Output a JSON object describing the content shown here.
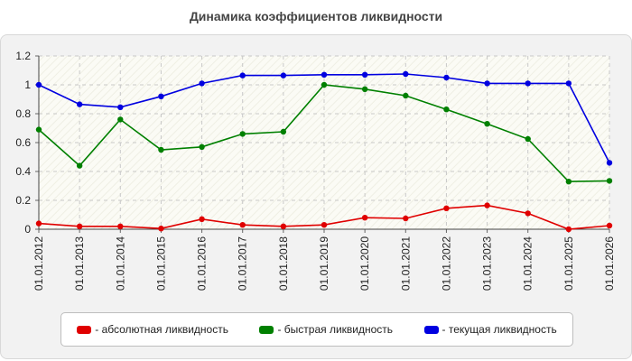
{
  "title": "Динамика коэффициентов ликвидности",
  "chart_data": {
    "type": "line",
    "title": "Динамика коэффициентов ликвидности",
    "xlabel": "",
    "ylabel": "",
    "x": [
      "01.01.2012",
      "01.01.2013",
      "01.01.2014",
      "01.01.2015",
      "01.01.2016",
      "01.01.2017",
      "01.01.2018",
      "01.01.2019",
      "01.01.2020",
      "01.01.2021",
      "01.01.2022",
      "01.01.2023",
      "01.01.2024",
      "01.01.2025",
      "01.01.2026"
    ],
    "ylim": [
      0,
      1.2
    ],
    "yticks": [
      "0",
      "0.2",
      "0.4",
      "0.6",
      "0.8",
      "1",
      "1.2"
    ],
    "grid": true,
    "legend_position": "bottom",
    "series": [
      {
        "name": "- абсолютная ликвидность",
        "color": "#e00000",
        "values": [
          0.04,
          0.02,
          0.02,
          0.005,
          0.07,
          0.03,
          0.02,
          0.03,
          0.08,
          0.075,
          0.145,
          0.165,
          0.11,
          0.0,
          0.025
        ]
      },
      {
        "name": "- быстрая ликвидность",
        "color": "#008000",
        "values": [
          0.69,
          0.44,
          0.76,
          0.55,
          0.57,
          0.66,
          0.675,
          1.0,
          0.97,
          0.925,
          0.83,
          0.73,
          0.625,
          0.33,
          0.335
        ]
      },
      {
        "name": "- текущая ликвидность",
        "color": "#0000e0",
        "values": [
          1.0,
          0.865,
          0.845,
          0.92,
          1.01,
          1.065,
          1.065,
          1.07,
          1.07,
          1.075,
          1.05,
          1.01,
          1.01,
          1.01,
          0.46
        ]
      }
    ]
  }
}
